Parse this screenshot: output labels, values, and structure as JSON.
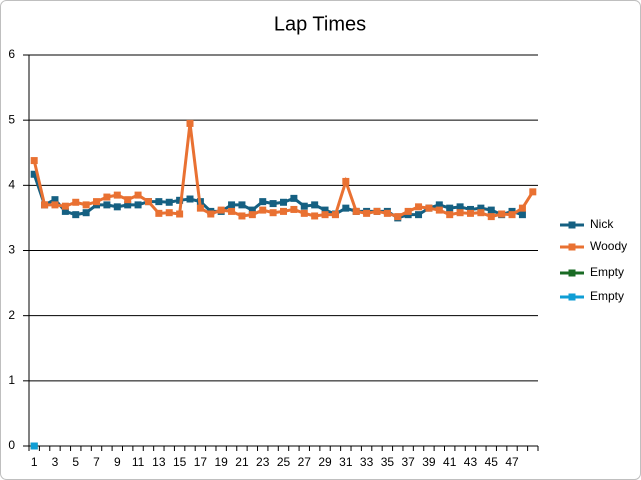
{
  "chart_data": {
    "type": "line",
    "title": "Lap Times",
    "categories": [
      1,
      null,
      3,
      null,
      5,
      null,
      7,
      null,
      9,
      null,
      11,
      null,
      13,
      null,
      15,
      null,
      17,
      null,
      19,
      null,
      21,
      null,
      23,
      null,
      25,
      null,
      27,
      null,
      29,
      null,
      31,
      null,
      33,
      null,
      35,
      null,
      37,
      null,
      39,
      null,
      41,
      null,
      43,
      null,
      45,
      null,
      47,
      null,
      null
    ],
    "series": [
      {
        "name": "Nick",
        "color": "#156082",
        "values": [
          4.17,
          3.7,
          3.78,
          3.6,
          3.55,
          3.58,
          3.7,
          3.7,
          3.67,
          3.7,
          3.7,
          3.75,
          3.75,
          3.74,
          3.77,
          3.79,
          3.75,
          3.6,
          3.6,
          3.7,
          3.7,
          3.62,
          3.75,
          3.72,
          3.74,
          3.8,
          3.68,
          3.7,
          3.62,
          3.56,
          3.65,
          3.6,
          3.6,
          3.6,
          3.6,
          3.5,
          3.55,
          3.55,
          3.65,
          3.7,
          3.65,
          3.67,
          3.63,
          3.65,
          3.62,
          3.55,
          3.6,
          3.55,
          null
        ]
      },
      {
        "name": "Woody",
        "color": "#e97132",
        "values": [
          4.38,
          3.7,
          3.7,
          3.68,
          3.74,
          3.7,
          3.75,
          3.82,
          3.85,
          3.78,
          3.85,
          3.75,
          3.57,
          3.58,
          3.56,
          4.95,
          3.65,
          3.56,
          3.62,
          3.6,
          3.53,
          3.55,
          3.62,
          3.58,
          3.6,
          3.63,
          3.57,
          3.53,
          3.55,
          3.55,
          4.06,
          3.6,
          3.57,
          3.6,
          3.57,
          3.52,
          3.6,
          3.67,
          3.65,
          3.62,
          3.55,
          3.58,
          3.57,
          3.58,
          3.52,
          3.56,
          3.55,
          3.65,
          3.9
        ]
      },
      {
        "name": "Empty",
        "color": "#196b24",
        "values": [
          0,
          null,
          null,
          null,
          null,
          null,
          null,
          null,
          null,
          null,
          null,
          null,
          null,
          null,
          null,
          null,
          null,
          null,
          null,
          null,
          null,
          null,
          null,
          null,
          null,
          null,
          null,
          null,
          null,
          null,
          null,
          null,
          null,
          null,
          null,
          null,
          null,
          null,
          null,
          null,
          null,
          null,
          null,
          null,
          null,
          null,
          null,
          null,
          null
        ]
      },
      {
        "name": "Empty",
        "color": "#0f9ed5",
        "values": [
          0,
          null,
          null,
          null,
          null,
          null,
          null,
          null,
          null,
          null,
          null,
          null,
          null,
          null,
          null,
          null,
          null,
          null,
          null,
          null,
          null,
          null,
          null,
          null,
          null,
          null,
          null,
          null,
          null,
          null,
          null,
          null,
          null,
          null,
          null,
          null,
          null,
          null,
          null,
          null,
          null,
          null,
          null,
          null,
          null,
          null,
          null,
          null,
          null
        ]
      }
    ],
    "ylim": [
      0,
      6
    ],
    "yticks": [
      0,
      1,
      2,
      3,
      4,
      5,
      6
    ],
    "grid": true,
    "legend": "right"
  }
}
